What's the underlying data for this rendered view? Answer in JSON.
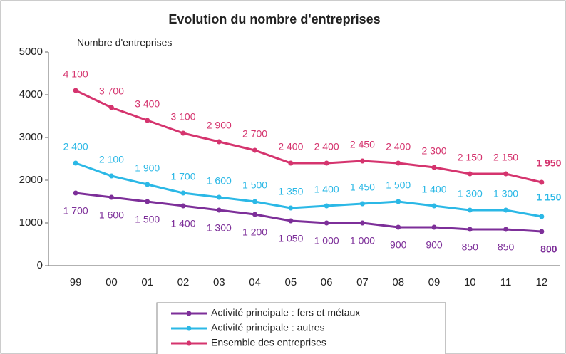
{
  "chart_data": {
    "type": "line",
    "title": "Evolution du nombre d'entreprises",
    "ylabel": "Nombre d'entreprises",
    "categories": [
      "99",
      "00",
      "01",
      "02",
      "03",
      "04",
      "05",
      "06",
      "07",
      "08",
      "09",
      "10",
      "11",
      "12"
    ],
    "ylim": [
      0,
      5000
    ],
    "yticks": [
      0,
      1000,
      2000,
      3000,
      4000,
      5000
    ],
    "grid": false,
    "legend": "bottom",
    "series": [
      {
        "name": "Activité principale : fers et métaux",
        "color": "#7d2f99",
        "values": [
          1700,
          1600,
          1500,
          1400,
          1300,
          1200,
          1050,
          1000,
          1000,
          900,
          900,
          850,
          850,
          800
        ],
        "value_labels": [
          "1 700",
          "1 600",
          "1 500",
          "1 400",
          "1 300",
          "1 200",
          "1 050",
          "1 000",
          "1 000",
          "900",
          "900",
          "850",
          "850",
          "800"
        ]
      },
      {
        "name": "Activité principale : autres",
        "color": "#2bb8e6",
        "values": [
          2400,
          2100,
          1900,
          1700,
          1600,
          1500,
          1350,
          1400,
          1450,
          1500,
          1400,
          1300,
          1300,
          1150
        ],
        "value_labels": [
          "2 400",
          "2 100",
          "1 900",
          "1 700",
          "1 600",
          "1 500",
          "1 350",
          "1 400",
          "1 450",
          "1 500",
          "1 400",
          "1 300",
          "1 300",
          "1 150"
        ]
      },
      {
        "name": "Ensemble des entreprises",
        "color": "#d5346e",
        "values": [
          4100,
          3700,
          3400,
          3100,
          2900,
          2700,
          2400,
          2400,
          2450,
          2400,
          2300,
          2150,
          2150,
          1950
        ],
        "value_labels": [
          "4 100",
          "3 700",
          "3 400",
          "3 100",
          "2 900",
          "2 700",
          "2 400",
          "2 400",
          "2 450",
          "2 400",
          "2 300",
          "2 150",
          "2 150",
          "1 950"
        ]
      }
    ]
  }
}
